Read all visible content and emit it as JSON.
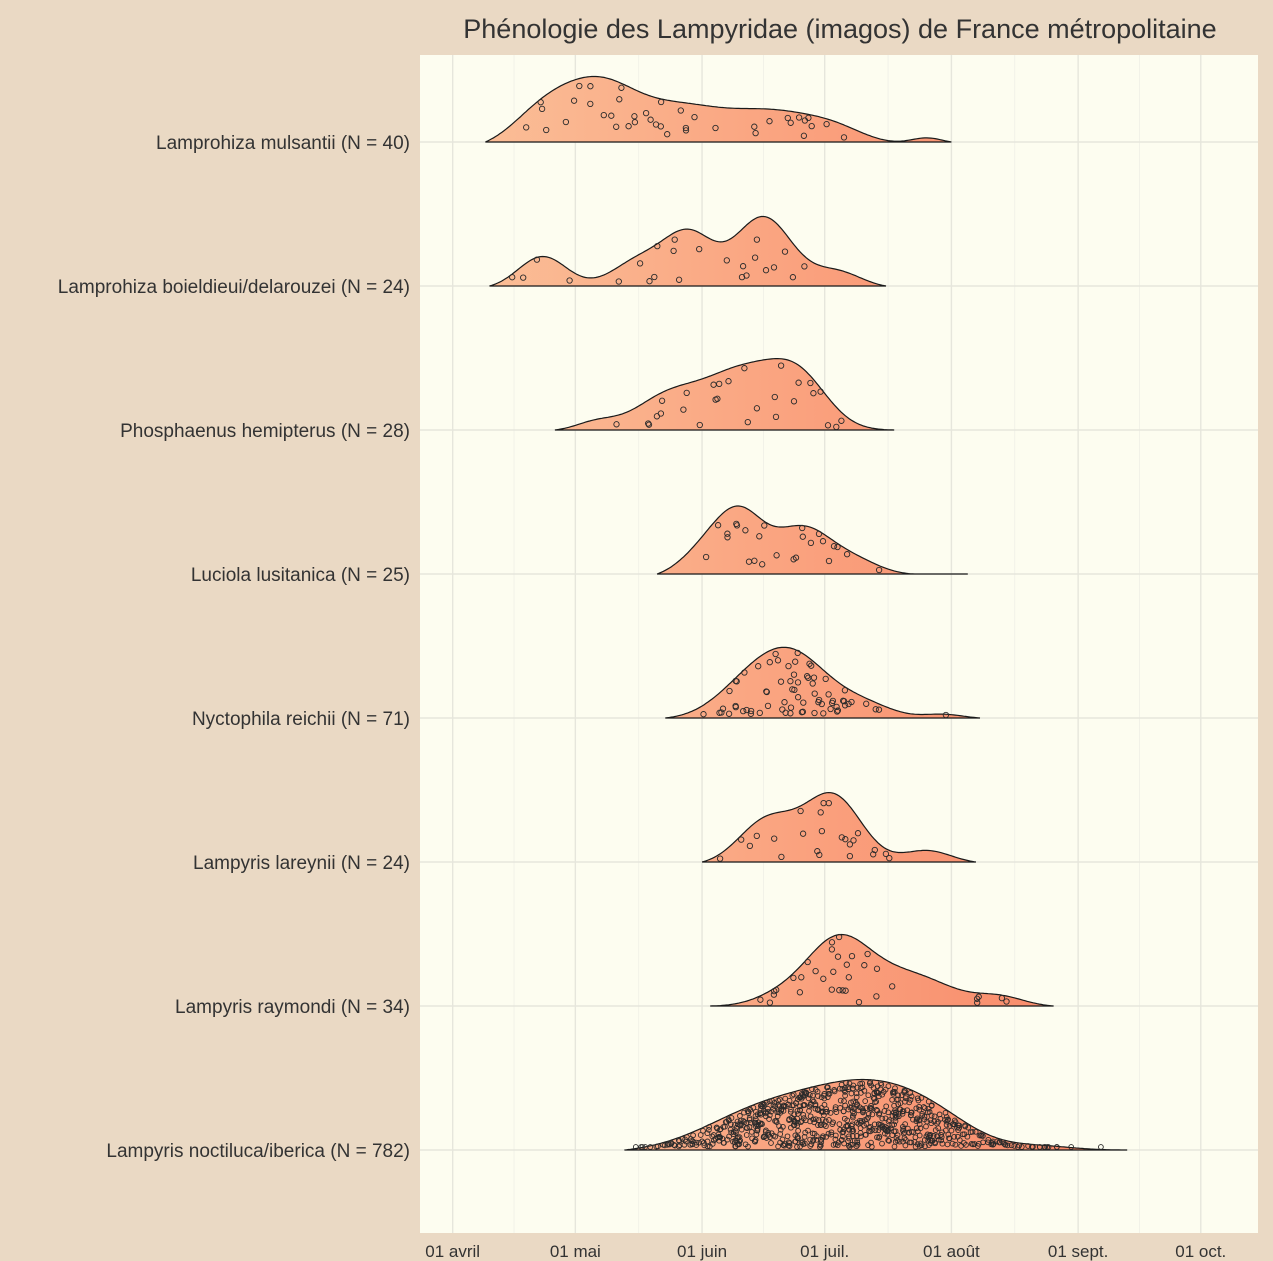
{
  "chart_data": {
    "type": "ridgeline",
    "title": "Phénologie des Lampyridae (imagos) de France métropolitaine",
    "xlabel": "",
    "ylabel": "",
    "x_axis": {
      "unit": "day-of-year",
      "ticks": [
        {
          "label": "01 avril",
          "day": 91
        },
        {
          "label": "01 mai",
          "day": 121
        },
        {
          "label": "01 juin",
          "day": 152
        },
        {
          "label": "01 juil.",
          "day": 182
        },
        {
          "label": "01 août",
          "day": 213
        },
        {
          "label": "01 sept.",
          "day": 244
        },
        {
          "label": "01 oct.",
          "day": 274
        }
      ],
      "range": [
        83,
        288
      ]
    },
    "grid": true,
    "colors": {
      "gradient_start": "#fbc39b",
      "gradient_end": "#f87a5c",
      "panel_bg": "#fdfdf0",
      "page_bg": "#ead9c4"
    },
    "series": [
      {
        "name": "Lamprohiza mulsantii (N = 40)",
        "n": 40,
        "range": [
          99,
          213
        ],
        "peaks": [
          [
            113,
            0.55,
            8
          ],
          [
            127,
            0.95,
            9
          ],
          [
            146,
            0.55,
            10
          ],
          [
            169,
            0.55,
            12
          ],
          [
            185,
            0.15,
            7
          ],
          [
            207,
            0.1,
            4
          ]
        ]
      },
      {
        "name": "Lamprohiza boieldieui/delarouzei (N = 24)",
        "n": 24,
        "range": [
          100,
          197
        ],
        "peaks": [
          [
            113,
            0.4,
            6
          ],
          [
            137,
            0.35,
            7
          ],
          [
            149,
            0.62,
            6
          ],
          [
            167,
            0.88,
            7
          ],
          [
            185,
            0.2,
            6
          ]
        ]
      },
      {
        "name": "Phosphaenus hemipterus (N = 28)",
        "n": 28,
        "range": [
          116,
          199
        ],
        "peaks": [
          [
            126,
            0.1,
            5
          ],
          [
            143,
            0.36,
            8
          ],
          [
            162,
            0.7,
            10
          ],
          [
            176,
            0.5,
            7
          ]
        ]
      },
      {
        "name": "Luciola lusitanica (N = 25)",
        "n": 25,
        "range": [
          141,
          217
        ],
        "peaks": [
          [
            158,
            0.5,
            8
          ],
          [
            177,
            0.45,
            7
          ],
          [
            190,
            0.12,
            6
          ],
          [
            162,
            0.2,
            5
          ]
        ]
      },
      {
        "name": "Nyctophila reichii (N = 71)",
        "n": 71,
        "range": [
          143,
          220
        ],
        "peaks": [
          [
            162,
            0.25,
            8
          ],
          [
            174,
            0.7,
            9
          ],
          [
            192,
            0.14,
            7
          ],
          [
            211,
            0.05,
            5
          ]
        ]
      },
      {
        "name": "Lampyris lareynii (N = 24)",
        "n": 24,
        "range": [
          152,
          219
        ],
        "peaks": [
          [
            168,
            0.6,
            7
          ],
          [
            184,
            0.92,
            7
          ],
          [
            207,
            0.18,
            6
          ]
        ]
      },
      {
        "name": "Lampyris raymondi (N = 34)",
        "n": 34,
        "range": [
          154,
          238
        ],
        "peaks": [
          [
            170,
            0.1,
            6
          ],
          [
            185,
            0.85,
            8
          ],
          [
            203,
            0.4,
            10
          ],
          [
            225,
            0.12,
            6
          ]
        ]
      },
      {
        "name": "Lampyris noctiluca/iberica (N = 782)",
        "n": 782,
        "range": [
          133,
          256
        ],
        "peaks": [
          [
            168,
            0.42,
            15
          ],
          [
            194,
            0.58,
            14
          ],
          [
            210,
            0.15,
            10
          ],
          [
            235,
            0.04,
            8
          ]
        ]
      }
    ]
  }
}
